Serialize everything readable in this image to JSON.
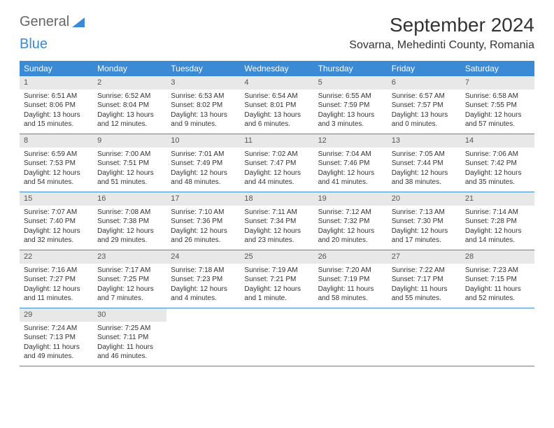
{
  "logo": {
    "word1": "General",
    "word2": "Blue"
  },
  "title": "September 2024",
  "location": "Sovarna, Mehedinti County, Romania",
  "weekdays": [
    "Sunday",
    "Monday",
    "Tuesday",
    "Wednesday",
    "Thursday",
    "Friday",
    "Saturday"
  ],
  "colors": {
    "header_bar": "#3a8ad6",
    "header_text": "#ffffff",
    "daynum_bg": "#e8e8e8",
    "daynum_text": "#555555",
    "body_text": "#333333",
    "row_border": "#3a8ad6",
    "logo_gray": "#666666",
    "logo_blue": "#3a8ad6",
    "background": "#ffffff"
  },
  "typography": {
    "title_fontsize": 28,
    "location_fontsize": 16,
    "weekday_fontsize": 12,
    "daynum_fontsize": 11,
    "body_fontsize": 10
  },
  "layout": {
    "columns": 7,
    "rows": 5,
    "cell_min_height": 82
  },
  "days": [
    {
      "n": "1",
      "sunrise": "Sunrise: 6:51 AM",
      "sunset": "Sunset: 8:06 PM",
      "daylight": "Daylight: 13 hours and 15 minutes."
    },
    {
      "n": "2",
      "sunrise": "Sunrise: 6:52 AM",
      "sunset": "Sunset: 8:04 PM",
      "daylight": "Daylight: 13 hours and 12 minutes."
    },
    {
      "n": "3",
      "sunrise": "Sunrise: 6:53 AM",
      "sunset": "Sunset: 8:02 PM",
      "daylight": "Daylight: 13 hours and 9 minutes."
    },
    {
      "n": "4",
      "sunrise": "Sunrise: 6:54 AM",
      "sunset": "Sunset: 8:01 PM",
      "daylight": "Daylight: 13 hours and 6 minutes."
    },
    {
      "n": "5",
      "sunrise": "Sunrise: 6:55 AM",
      "sunset": "Sunset: 7:59 PM",
      "daylight": "Daylight: 13 hours and 3 minutes."
    },
    {
      "n": "6",
      "sunrise": "Sunrise: 6:57 AM",
      "sunset": "Sunset: 7:57 PM",
      "daylight": "Daylight: 13 hours and 0 minutes."
    },
    {
      "n": "7",
      "sunrise": "Sunrise: 6:58 AM",
      "sunset": "Sunset: 7:55 PM",
      "daylight": "Daylight: 12 hours and 57 minutes."
    },
    {
      "n": "8",
      "sunrise": "Sunrise: 6:59 AM",
      "sunset": "Sunset: 7:53 PM",
      "daylight": "Daylight: 12 hours and 54 minutes."
    },
    {
      "n": "9",
      "sunrise": "Sunrise: 7:00 AM",
      "sunset": "Sunset: 7:51 PM",
      "daylight": "Daylight: 12 hours and 51 minutes."
    },
    {
      "n": "10",
      "sunrise": "Sunrise: 7:01 AM",
      "sunset": "Sunset: 7:49 PM",
      "daylight": "Daylight: 12 hours and 48 minutes."
    },
    {
      "n": "11",
      "sunrise": "Sunrise: 7:02 AM",
      "sunset": "Sunset: 7:47 PM",
      "daylight": "Daylight: 12 hours and 44 minutes."
    },
    {
      "n": "12",
      "sunrise": "Sunrise: 7:04 AM",
      "sunset": "Sunset: 7:46 PM",
      "daylight": "Daylight: 12 hours and 41 minutes."
    },
    {
      "n": "13",
      "sunrise": "Sunrise: 7:05 AM",
      "sunset": "Sunset: 7:44 PM",
      "daylight": "Daylight: 12 hours and 38 minutes."
    },
    {
      "n": "14",
      "sunrise": "Sunrise: 7:06 AM",
      "sunset": "Sunset: 7:42 PM",
      "daylight": "Daylight: 12 hours and 35 minutes."
    },
    {
      "n": "15",
      "sunrise": "Sunrise: 7:07 AM",
      "sunset": "Sunset: 7:40 PM",
      "daylight": "Daylight: 12 hours and 32 minutes."
    },
    {
      "n": "16",
      "sunrise": "Sunrise: 7:08 AM",
      "sunset": "Sunset: 7:38 PM",
      "daylight": "Daylight: 12 hours and 29 minutes."
    },
    {
      "n": "17",
      "sunrise": "Sunrise: 7:10 AM",
      "sunset": "Sunset: 7:36 PM",
      "daylight": "Daylight: 12 hours and 26 minutes."
    },
    {
      "n": "18",
      "sunrise": "Sunrise: 7:11 AM",
      "sunset": "Sunset: 7:34 PM",
      "daylight": "Daylight: 12 hours and 23 minutes."
    },
    {
      "n": "19",
      "sunrise": "Sunrise: 7:12 AM",
      "sunset": "Sunset: 7:32 PM",
      "daylight": "Daylight: 12 hours and 20 minutes."
    },
    {
      "n": "20",
      "sunrise": "Sunrise: 7:13 AM",
      "sunset": "Sunset: 7:30 PM",
      "daylight": "Daylight: 12 hours and 17 minutes."
    },
    {
      "n": "21",
      "sunrise": "Sunrise: 7:14 AM",
      "sunset": "Sunset: 7:28 PM",
      "daylight": "Daylight: 12 hours and 14 minutes."
    },
    {
      "n": "22",
      "sunrise": "Sunrise: 7:16 AM",
      "sunset": "Sunset: 7:27 PM",
      "daylight": "Daylight: 12 hours and 11 minutes."
    },
    {
      "n": "23",
      "sunrise": "Sunrise: 7:17 AM",
      "sunset": "Sunset: 7:25 PM",
      "daylight": "Daylight: 12 hours and 7 minutes."
    },
    {
      "n": "24",
      "sunrise": "Sunrise: 7:18 AM",
      "sunset": "Sunset: 7:23 PM",
      "daylight": "Daylight: 12 hours and 4 minutes."
    },
    {
      "n": "25",
      "sunrise": "Sunrise: 7:19 AM",
      "sunset": "Sunset: 7:21 PM",
      "daylight": "Daylight: 12 hours and 1 minute."
    },
    {
      "n": "26",
      "sunrise": "Sunrise: 7:20 AM",
      "sunset": "Sunset: 7:19 PM",
      "daylight": "Daylight: 11 hours and 58 minutes."
    },
    {
      "n": "27",
      "sunrise": "Sunrise: 7:22 AM",
      "sunset": "Sunset: 7:17 PM",
      "daylight": "Daylight: 11 hours and 55 minutes."
    },
    {
      "n": "28",
      "sunrise": "Sunrise: 7:23 AM",
      "sunset": "Sunset: 7:15 PM",
      "daylight": "Daylight: 11 hours and 52 minutes."
    },
    {
      "n": "29",
      "sunrise": "Sunrise: 7:24 AM",
      "sunset": "Sunset: 7:13 PM",
      "daylight": "Daylight: 11 hours and 49 minutes."
    },
    {
      "n": "30",
      "sunrise": "Sunrise: 7:25 AM",
      "sunset": "Sunset: 7:11 PM",
      "daylight": "Daylight: 11 hours and 46 minutes."
    }
  ]
}
